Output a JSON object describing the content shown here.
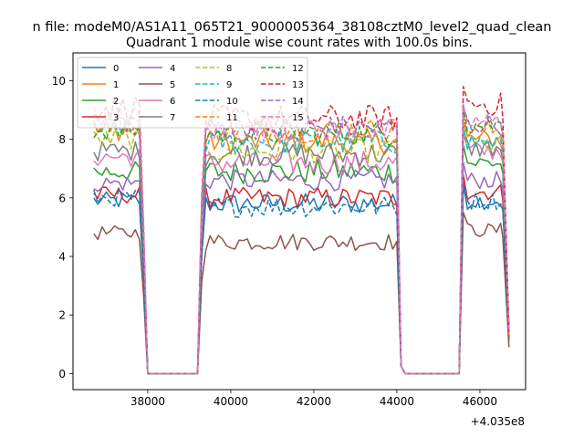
{
  "chart_data": {
    "type": "line",
    "suptitle": "n file: modeM0/AS1A11_065T21_9000005364_38108cztM0_level2_quad_clean",
    "title": "Quadrant 1 module wise count rates with 100.0s bins.",
    "xlabel": "",
    "ylabel": "",
    "x_offset_label": "+4.035e8",
    "x_offset": 403500000,
    "xlim": [
      36200,
      47100
    ],
    "ylim": [
      -0.55,
      10.95
    ],
    "xticks": [
      38000,
      40000,
      42000,
      44000,
      46000
    ],
    "xtick_labels": [
      "38000",
      "40000",
      "42000",
      "44000",
      "46000"
    ],
    "yticks": [
      0,
      2,
      4,
      6,
      8,
      10
    ],
    "ytick_labels": [
      "0",
      "2",
      "4",
      "6",
      "8",
      "10"
    ],
    "grid": false,
    "legend_position": "upper-left",
    "legend_columns": 4,
    "segments": {
      "x_start": 36700,
      "x_drop": 37900,
      "x_gap_start": 38000,
      "x_gap_end": 39200,
      "x_resume_start": 39300,
      "x_second_end": 44000,
      "x_second_drop": 44100,
      "x_gap2_end": 45500,
      "x_third_start": 45600,
      "x_third_end": 46500,
      "x_final": 46700,
      "bin": 100
    },
    "series": [
      {
        "name": "0",
        "color": "#1f77b4",
        "dash": "solid",
        "level1": 5.9,
        "level2": 5.8,
        "level3": 5.9,
        "noise": 0.3,
        "final": 1.6
      },
      {
        "name": "1",
        "color": "#ff7f0e",
        "dash": "solid",
        "level1": 8.3,
        "level2": 7.9,
        "level3": 8.0,
        "noise": 0.35,
        "final": 1.3
      },
      {
        "name": "2",
        "color": "#2ca02c",
        "dash": "solid",
        "level1": 6.9,
        "level2": 6.9,
        "level3": 7.2,
        "noise": 0.35,
        "final": 1.1
      },
      {
        "name": "3",
        "color": "#d62728",
        "dash": "solid",
        "level1": 6.1,
        "level2": 6.0,
        "level3": 6.2,
        "noise": 0.3,
        "final": 1.2
      },
      {
        "name": "4",
        "color": "#9467bd",
        "dash": "solid",
        "level1": 6.5,
        "level2": 6.6,
        "level3": 6.6,
        "noise": 0.3,
        "final": 1.4
      },
      {
        "name": "5",
        "color": "#8c564b",
        "dash": "solid",
        "level1": 4.8,
        "level2": 4.5,
        "level3": 4.9,
        "noise": 0.25,
        "final": 0.9
      },
      {
        "name": "6",
        "color": "#e377c2",
        "dash": "solid",
        "level1": 7.4,
        "level2": 7.2,
        "level3": 7.6,
        "noise": 0.35,
        "final": 1.3
      },
      {
        "name": "7",
        "color": "#7f7f7f",
        "dash": "solid",
        "level1": 7.6,
        "level2": 7.5,
        "level3": 7.7,
        "noise": 0.35,
        "final": 1.3
      },
      {
        "name": "8",
        "color": "#bcbd22",
        "dash": "dashed",
        "level1": 8.0,
        "level2": 7.6,
        "level3": 7.8,
        "noise": 0.35,
        "final": 1.3
      },
      {
        "name": "9",
        "color": "#17becf",
        "dash": "dashed",
        "level1": 8.4,
        "level2": 7.9,
        "level3": 7.9,
        "noise": 0.35,
        "final": 1.3
      },
      {
        "name": "10",
        "color": "#1f77b4",
        "dash": "dashed",
        "level1": 6.0,
        "level2": 5.7,
        "level3": 5.9,
        "noise": 0.3,
        "final": 1.4
      },
      {
        "name": "11",
        "color": "#ff7f0e",
        "dash": "dashed",
        "level1": 8.5,
        "level2": 8.3,
        "level3": 8.3,
        "noise": 0.35,
        "final": 1.3
      },
      {
        "name": "12",
        "color": "#2ca02c",
        "dash": "dashed",
        "level1": 8.3,
        "level2": 8.2,
        "level3": 8.5,
        "noise": 0.35,
        "final": 1.4
      },
      {
        "name": "13",
        "color": "#d62728",
        "dash": "dashed",
        "level1": 9.1,
        "level2": 8.7,
        "level3": 9.2,
        "noise": 0.4,
        "final": 1.3
      },
      {
        "name": "14",
        "color": "#9467bd",
        "dash": "dashed",
        "level1": 8.6,
        "level2": 8.4,
        "level3": 8.5,
        "noise": 0.35,
        "final": 1.4
      },
      {
        "name": "15",
        "color": "#e377c2",
        "dash": "dashed",
        "level1": 8.8,
        "level2": 8.3,
        "level3": 8.6,
        "noise": 0.35,
        "final": 1.4
      }
    ]
  }
}
